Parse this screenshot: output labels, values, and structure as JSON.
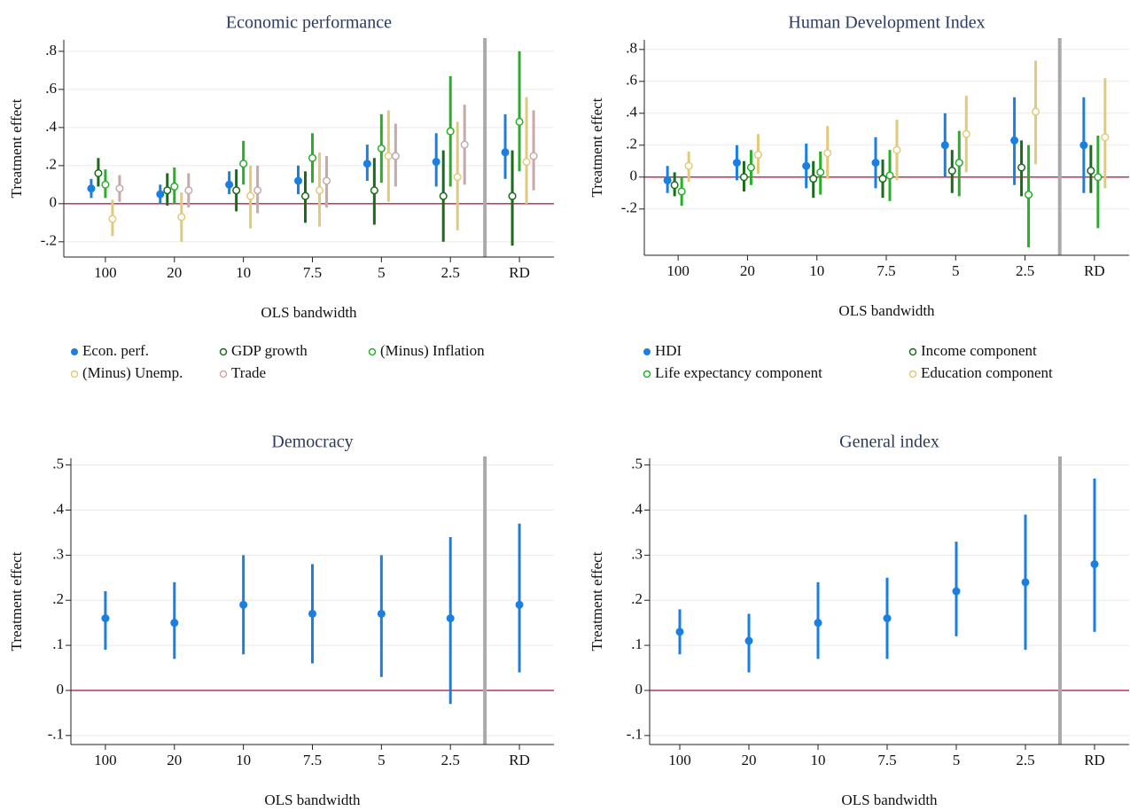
{
  "chart_data": [
    {
      "type": "coefplot",
      "title": "Economic performance",
      "y_label": "Treatment effect",
      "x_label": "OLS bandwidth",
      "categories": [
        "100",
        "20",
        "10",
        "7.5",
        "5",
        "2.5",
        "RD"
      ],
      "ylim": [
        -0.28,
        0.86
      ],
      "yticks": [
        {
          "value": -0.2,
          "label": "-.2"
        },
        0,
        {
          "value": 0.2,
          "label": ".2"
        },
        {
          "value": 0.4,
          "label": ".4"
        },
        {
          "value": 0.6,
          "label": ".6"
        },
        {
          "value": 0.8,
          "label": ".8"
        }
      ],
      "reference_line": 0,
      "grid": true,
      "legend_columns": 3,
      "series": [
        {
          "name": "Econ. perf.",
          "color": "#1a7fe0",
          "marker": "filled",
          "values": [
            0.08,
            0.05,
            0.1,
            0.12,
            0.21,
            0.22,
            0.27
          ],
          "ci_low": [
            0.03,
            0.0,
            0.05,
            0.05,
            0.12,
            0.09,
            0.13
          ],
          "ci_high": [
            0.13,
            0.1,
            0.17,
            0.2,
            0.31,
            0.37,
            0.47
          ]
        },
        {
          "name": "GDP growth",
          "color": "#1a6b1a",
          "marker": "hollow",
          "values": [
            0.16,
            0.07,
            0.07,
            0.04,
            0.07,
            0.04,
            0.04
          ],
          "ci_low": [
            0.09,
            -0.01,
            -0.04,
            -0.1,
            -0.11,
            -0.2,
            -0.22
          ],
          "ci_high": [
            0.24,
            0.16,
            0.18,
            0.17,
            0.24,
            0.28,
            0.28
          ]
        },
        {
          "name": "(Minus) Inflation",
          "color": "#27b027",
          "marker": "hollow",
          "values": [
            0.1,
            0.09,
            0.21,
            0.24,
            0.29,
            0.38,
            0.43
          ],
          "ci_low": [
            0.03,
            0.0,
            0.1,
            0.11,
            0.11,
            0.09,
            0.17
          ],
          "ci_high": [
            0.18,
            0.19,
            0.33,
            0.37,
            0.47,
            0.67,
            0.8
          ]
        },
        {
          "name": "(Minus) Unemp.",
          "color": "#e3c97a",
          "marker": "hollow",
          "values": [
            -0.08,
            -0.07,
            0.04,
            0.07,
            0.25,
            0.14,
            0.22
          ],
          "ci_low": [
            -0.17,
            -0.2,
            -0.13,
            -0.12,
            0.01,
            -0.14,
            0.0
          ],
          "ci_high": [
            0.02,
            0.06,
            0.2,
            0.27,
            0.49,
            0.43,
            0.56
          ]
        },
        {
          "name": "Trade",
          "color": "#c9a8a8",
          "marker": "hollow",
          "values": [
            0.08,
            0.07,
            0.07,
            0.12,
            0.25,
            0.31,
            0.25
          ],
          "ci_low": [
            0.01,
            -0.02,
            -0.05,
            -0.02,
            0.09,
            0.1,
            0.07
          ],
          "ci_high": [
            0.15,
            0.16,
            0.2,
            0.25,
            0.42,
            0.52,
            0.49
          ]
        }
      ]
    },
    {
      "type": "coefplot",
      "title": "Human Development Index",
      "y_label": "Treatment effect",
      "x_label": "OLS bandwidth",
      "categories": [
        "100",
        "20",
        "10",
        "7.5",
        "5",
        "2.5",
        "RD"
      ],
      "ylim": [
        -0.49,
        0.86
      ],
      "yticks": [
        {
          "value": -0.2,
          "label": "-.2"
        },
        0,
        {
          "value": 0.2,
          "label": ".2"
        },
        {
          "value": 0.4,
          "label": ".4"
        },
        {
          "value": 0.6,
          "label": ".6"
        },
        {
          "value": 0.8,
          "label": ".8"
        }
      ],
      "reference_line": 0,
      "grid": true,
      "legend_columns": 2,
      "series": [
        {
          "name": "HDI",
          "color": "#1a7fe0",
          "marker": "filled",
          "values": [
            -0.02,
            0.09,
            0.07,
            0.09,
            0.2,
            0.23,
            0.2
          ],
          "ci_low": [
            -0.1,
            -0.02,
            -0.07,
            -0.07,
            0.0,
            -0.05,
            -0.1
          ],
          "ci_high": [
            0.07,
            0.2,
            0.21,
            0.25,
            0.4,
            0.5,
            0.5
          ]
        },
        {
          "name": "Income component",
          "color": "#1a6b1a",
          "marker": "hollow",
          "values": [
            -0.05,
            0.0,
            -0.01,
            -0.01,
            0.04,
            0.06,
            0.04
          ],
          "ci_low": [
            -0.12,
            -0.09,
            -0.13,
            -0.13,
            -0.1,
            -0.12,
            -0.1
          ],
          "ci_high": [
            0.03,
            0.1,
            0.1,
            0.11,
            0.17,
            0.23,
            0.2
          ]
        },
        {
          "name": "Life expectancy component",
          "color": "#27b027",
          "marker": "hollow",
          "values": [
            -0.09,
            0.06,
            0.03,
            0.01,
            0.09,
            -0.11,
            0.0
          ],
          "ci_low": [
            -0.18,
            -0.05,
            -0.11,
            -0.15,
            -0.12,
            -0.44,
            -0.32
          ],
          "ci_high": [
            0.0,
            0.17,
            0.16,
            0.17,
            0.29,
            0.2,
            0.26
          ]
        },
        {
          "name": "Education component",
          "color": "#e3c97a",
          "marker": "hollow",
          "values": [
            0.07,
            0.14,
            0.15,
            0.17,
            0.27,
            0.41,
            0.25
          ],
          "ci_low": [
            -0.03,
            0.02,
            -0.01,
            -0.02,
            0.03,
            0.08,
            -0.07
          ],
          "ci_high": [
            0.16,
            0.27,
            0.32,
            0.36,
            0.51,
            0.73,
            0.62
          ]
        }
      ]
    },
    {
      "type": "coefplot",
      "title": "Democracy",
      "y_label": "Treatment effect",
      "x_label": "OLS bandwidth",
      "categories": [
        "100",
        "20",
        "10",
        "7.5",
        "5",
        "2.5",
        "RD"
      ],
      "ylim": [
        -0.12,
        0.515
      ],
      "yticks": [
        {
          "value": -0.1,
          "label": "-.1"
        },
        0,
        {
          "value": 0.1,
          "label": ".1"
        },
        {
          "value": 0.2,
          "label": ".2"
        },
        {
          "value": 0.3,
          "label": ".3"
        },
        {
          "value": 0.4,
          "label": ".4"
        },
        {
          "value": 0.5,
          "label": ".5"
        }
      ],
      "reference_line": 0,
      "grid": true,
      "color": "#1a7fe0",
      "marker": "filled",
      "values": [
        0.16,
        0.15,
        0.19,
        0.17,
        0.17,
        0.16,
        0.19
      ],
      "ci_low": [
        0.09,
        0.07,
        0.08,
        0.06,
        0.03,
        -0.03,
        0.04
      ],
      "ci_high": [
        0.22,
        0.24,
        0.3,
        0.28,
        0.3,
        0.34,
        0.37
      ]
    },
    {
      "type": "coefplot",
      "title": "General index",
      "y_label": "Treatment effect",
      "x_label": "OLS bandwidth",
      "categories": [
        "100",
        "20",
        "10",
        "7.5",
        "5",
        "2.5",
        "RD"
      ],
      "ylim": [
        -0.12,
        0.515
      ],
      "yticks": [
        {
          "value": -0.1,
          "label": "-.1"
        },
        0,
        {
          "value": 0.1,
          "label": ".1"
        },
        {
          "value": 0.2,
          "label": ".2"
        },
        {
          "value": 0.3,
          "label": ".3"
        },
        {
          "value": 0.4,
          "label": ".4"
        },
        {
          "value": 0.5,
          "label": ".5"
        }
      ],
      "reference_line": 0,
      "grid": true,
      "color": "#1a7fe0",
      "marker": "filled",
      "values": [
        0.13,
        0.11,
        0.15,
        0.16,
        0.22,
        0.24,
        0.28
      ],
      "ci_low": [
        0.08,
        0.04,
        0.07,
        0.07,
        0.12,
        0.09,
        0.13
      ],
      "ci_high": [
        0.18,
        0.17,
        0.24,
        0.25,
        0.33,
        0.39,
        0.47
      ]
    }
  ]
}
